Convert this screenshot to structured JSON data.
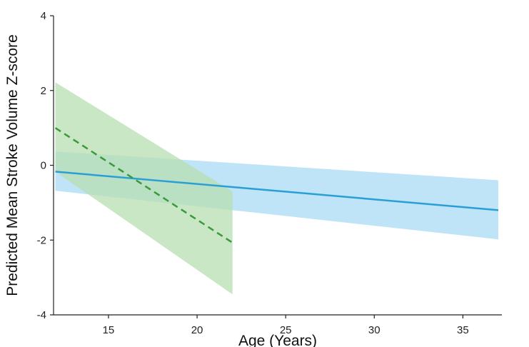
{
  "chart_data": {
    "type": "line",
    "title": "",
    "xlabel": "Age (Years)",
    "ylabel": "Predicted Mean Stroke Volume Z-score",
    "xlim": [
      11.9,
      37.2
    ],
    "ylim": [
      -4,
      4
    ],
    "xticks": [
      15,
      20,
      25,
      30,
      35
    ],
    "yticks": [
      -4,
      -2,
      0,
      2,
      4
    ],
    "grid": false,
    "legend": "none",
    "series": [
      {
        "style": "solid",
        "color": "#2a9fd6",
        "band_color": "#a9daf4",
        "x": [
          12,
          37
        ],
        "y": [
          -0.17,
          -1.2
        ],
        "band": {
          "x": [
            12,
            37
          ],
          "upper": [
            0.37,
            -0.4
          ],
          "lower": [
            -0.68,
            -1.98
          ]
        }
      },
      {
        "style": "dashed",
        "color": "#3a9a3a",
        "band_color": "#b7dfb1",
        "x": [
          12,
          22
        ],
        "y": [
          1.0,
          -2.07
        ],
        "band": {
          "x": [
            12,
            22
          ],
          "upper": [
            2.22,
            -0.7
          ],
          "lower": [
            -0.17,
            -3.45
          ]
        }
      }
    ]
  }
}
